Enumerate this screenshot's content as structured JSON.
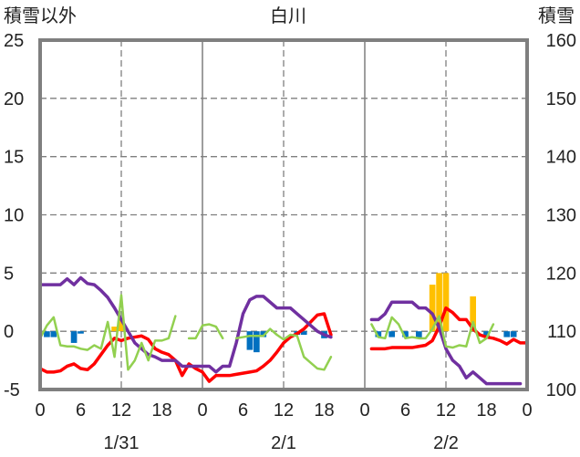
{
  "chart_data": {
    "type": "line",
    "title": "白川",
    "left_axis_label": "積雪以外",
    "right_axis_label": "積雪",
    "left_ylim": [
      -5,
      25
    ],
    "left_yticks": [
      25,
      20,
      15,
      10,
      5,
      0,
      -5
    ],
    "right_ylim": [
      100,
      160
    ],
    "right_yticks": [
      160,
      150,
      140,
      130,
      120,
      110,
      100
    ],
    "x_tick_labels": [
      "0",
      "6",
      "12",
      "18",
      "0",
      "6",
      "12",
      "18",
      "0",
      "6",
      "12",
      "18",
      "0"
    ],
    "day_labels": [
      "1/31",
      "2/1",
      "2/2"
    ],
    "grid": true,
    "colors": {
      "red": "#ff0000",
      "purple": "#7030a0",
      "green": "#92d050",
      "blue": "#0070c0",
      "orange": "#ffc000",
      "frame": "#7f7f7f",
      "grid": "#7f7f7f"
    },
    "series": [
      {
        "key": "red",
        "axis": "left",
        "points": [
          [
            0,
            -3.2
          ],
          [
            1,
            -3.5
          ],
          [
            2,
            -3.5
          ],
          [
            3,
            -3.4
          ],
          [
            4,
            -3.0
          ],
          [
            5,
            -2.8
          ],
          [
            6,
            -3.2
          ],
          [
            7,
            -3.3
          ],
          [
            8,
            -2.8
          ],
          [
            9,
            -2.0
          ],
          [
            10,
            -1.2
          ],
          [
            11,
            -0.6
          ],
          [
            12,
            -0.8
          ],
          [
            13,
            -0.6
          ],
          [
            14,
            -0.5
          ],
          [
            15,
            -0.4
          ],
          [
            16,
            -0.7
          ],
          [
            17,
            -1.5
          ],
          [
            18,
            -1.8
          ],
          [
            19,
            -2.0
          ],
          [
            20,
            -2.5
          ],
          [
            21,
            -3.8
          ],
          [
            22,
            -2.8
          ],
          [
            23,
            -3.2
          ],
          [
            24,
            -3.5
          ],
          [
            25,
            -4.3
          ],
          [
            26,
            -3.8
          ],
          [
            27,
            -3.8
          ],
          [
            28,
            -3.8
          ],
          [
            29,
            -3.7
          ],
          [
            30,
            -3.6
          ],
          [
            31,
            -3.5
          ],
          [
            32,
            -3.4
          ],
          [
            33,
            -3.0
          ],
          [
            34,
            -2.5
          ],
          [
            35,
            -1.8
          ],
          [
            36,
            -1.0
          ],
          [
            37,
            -0.5
          ],
          [
            38,
            -0.2
          ],
          [
            39,
            0.2
          ],
          [
            40,
            0.8
          ],
          [
            41,
            1.4
          ],
          [
            42,
            1.5
          ],
          [
            43,
            -0.3
          ],
          null,
          [
            49,
            -1.5
          ],
          [
            50,
            -1.5
          ],
          [
            51,
            -1.5
          ],
          [
            52,
            -1.4
          ],
          [
            53,
            -1.4
          ],
          [
            54,
            -1.4
          ],
          [
            55,
            -1.4
          ],
          [
            56,
            -1.3
          ],
          [
            57,
            -1.2
          ],
          [
            58,
            -0.8
          ],
          [
            59,
            0.4
          ],
          [
            60,
            2.0
          ],
          [
            61,
            1.6
          ],
          [
            62,
            1.0
          ],
          [
            63,
            1.0
          ],
          [
            64,
            0.2
          ],
          [
            65,
            -0.3
          ],
          [
            66,
            -0.5
          ],
          [
            67,
            -0.6
          ],
          [
            68,
            -0.8
          ],
          [
            69,
            -1.1
          ],
          [
            70,
            -0.7
          ],
          [
            71,
            -1.0
          ],
          [
            72,
            -1.0
          ]
        ]
      },
      {
        "key": "purple",
        "axis": "left",
        "points": [
          [
            0,
            4.0
          ],
          [
            1,
            4.0
          ],
          [
            2,
            4.0
          ],
          [
            3,
            4.0
          ],
          [
            4,
            4.5
          ],
          [
            5,
            4.0
          ],
          [
            6,
            4.6
          ],
          [
            7,
            4.1
          ],
          [
            8,
            4.0
          ],
          [
            9,
            3.5
          ],
          [
            10,
            2.9
          ],
          [
            11,
            2.0
          ],
          [
            12,
            1.0
          ],
          [
            13,
            0.0
          ],
          [
            14,
            -1.0
          ],
          [
            15,
            -1.5
          ],
          [
            16,
            -2.0
          ],
          [
            17,
            -2.2
          ],
          [
            18,
            -2.5
          ],
          [
            19,
            -2.5
          ],
          [
            20,
            -2.5
          ],
          [
            21,
            -3.0
          ],
          [
            22,
            -3.0
          ],
          [
            23,
            -3.0
          ],
          [
            24,
            -3.0
          ],
          [
            25,
            -3.0
          ],
          [
            26,
            -3.5
          ],
          [
            27,
            -3.0
          ],
          [
            28,
            -3.0
          ],
          [
            29,
            -1.0
          ],
          [
            30,
            1.5
          ],
          [
            31,
            2.7
          ],
          [
            32,
            3.0
          ],
          [
            33,
            3.0
          ],
          [
            34,
            2.5
          ],
          [
            35,
            2.0
          ],
          [
            36,
            2.0
          ],
          [
            37,
            2.0
          ],
          [
            38,
            1.5
          ],
          [
            39,
            1.0
          ],
          [
            40,
            0.5
          ],
          [
            41,
            0.0
          ],
          [
            42,
            -0.3
          ],
          [
            43,
            -0.5
          ],
          null,
          [
            49,
            1.0
          ],
          [
            50,
            1.0
          ],
          [
            51,
            1.5
          ],
          [
            52,
            2.5
          ],
          [
            53,
            2.5
          ],
          [
            54,
            2.5
          ],
          [
            55,
            2.5
          ],
          [
            56,
            2.0
          ],
          [
            57,
            2.0
          ],
          [
            58,
            1.5
          ],
          [
            59,
            0.3
          ],
          [
            60,
            -1.5
          ],
          [
            61,
            -2.5
          ],
          [
            62,
            -3.0
          ],
          [
            63,
            -4.0
          ],
          [
            64,
            -3.5
          ],
          [
            65,
            -4.0
          ],
          [
            66,
            -4.5
          ],
          [
            67,
            -4.5
          ],
          [
            68,
            -4.5
          ],
          [
            69,
            -4.5
          ],
          [
            70,
            -4.5
          ],
          [
            71,
            -4.5
          ]
        ]
      },
      {
        "key": "green",
        "axis": "left",
        "points": [
          [
            0,
            -0.6
          ],
          [
            1,
            0.5
          ],
          [
            2,
            1.2
          ],
          [
            3,
            -1.2
          ],
          [
            4,
            -1.3
          ],
          [
            5,
            -1.3
          ],
          [
            6,
            -1.5
          ],
          [
            7,
            -1.6
          ],
          [
            8,
            -1.2
          ],
          [
            9,
            -1.5
          ],
          [
            10,
            0.8
          ],
          [
            11,
            -2.2
          ],
          [
            12,
            3.1
          ],
          [
            13,
            -3.3
          ],
          [
            14,
            -2.5
          ],
          [
            15,
            -1.0
          ],
          [
            16,
            -2.5
          ],
          [
            17,
            -0.8
          ],
          [
            18,
            -0.8
          ],
          [
            19,
            -0.6
          ],
          [
            20,
            1.3
          ],
          null,
          [
            22,
            -0.6
          ],
          [
            23,
            -0.6
          ],
          [
            24,
            0.5
          ],
          [
            25,
            0.6
          ],
          [
            26,
            0.4
          ],
          [
            27,
            -0.6
          ],
          null,
          [
            29,
            -0.6
          ],
          [
            30,
            -0.5
          ],
          [
            31,
            -0.4
          ],
          [
            32,
            -0.4
          ],
          [
            33,
            -0.4
          ],
          [
            34,
            0.2
          ],
          [
            35,
            -0.3
          ],
          [
            36,
            -0.7
          ],
          [
            37,
            -0.3
          ],
          [
            38,
            -0.4
          ],
          [
            39,
            -2.2
          ],
          [
            40,
            -2.7
          ],
          [
            41,
            -3.2
          ],
          [
            42,
            -3.3
          ],
          [
            43,
            -2.2
          ],
          null,
          [
            49,
            0.6
          ],
          [
            50,
            -0.5
          ],
          [
            51,
            -0.6
          ],
          [
            52,
            1.2
          ],
          [
            53,
            0.6
          ],
          [
            54,
            -0.6
          ],
          [
            55,
            -0.5
          ],
          [
            56,
            -0.6
          ],
          [
            57,
            -0.6
          ],
          [
            58,
            0.2
          ],
          [
            59,
            1.3
          ],
          [
            60,
            -1.3
          ],
          [
            61,
            -1.4
          ],
          [
            62,
            -1.2
          ],
          [
            63,
            -1.3
          ],
          [
            64,
            0.8
          ],
          [
            65,
            -1.0
          ],
          [
            66,
            -0.6
          ],
          [
            67,
            0.6
          ]
        ]
      }
    ],
    "bars": [
      {
        "key": "blue",
        "axis": "left",
        "width": 0.9,
        "values": [
          [
            1,
            -0.5
          ],
          [
            2,
            -0.5
          ],
          [
            5,
            -1.0
          ],
          [
            6,
            -0.2
          ],
          [
            31,
            -1.6
          ],
          [
            32,
            -1.8
          ],
          [
            33,
            -0.5
          ],
          [
            38,
            -0.3
          ],
          [
            39,
            -0.3
          ],
          [
            42,
            -0.6
          ],
          [
            50,
            -0.5
          ],
          [
            52,
            -0.5
          ],
          [
            54,
            -0.5
          ],
          [
            56,
            -0.6
          ],
          [
            66,
            -0.5
          ],
          [
            69,
            -0.5
          ],
          [
            70,
            -0.5
          ]
        ]
      },
      {
        "key": "orange",
        "axis": "left",
        "width": 0.9,
        "values": [
          [
            11,
            0.4
          ],
          [
            12,
            1.0
          ],
          [
            58,
            4.0
          ],
          [
            59,
            5.0
          ],
          [
            60,
            5.0
          ],
          [
            64,
            3.0
          ]
        ]
      }
    ]
  }
}
